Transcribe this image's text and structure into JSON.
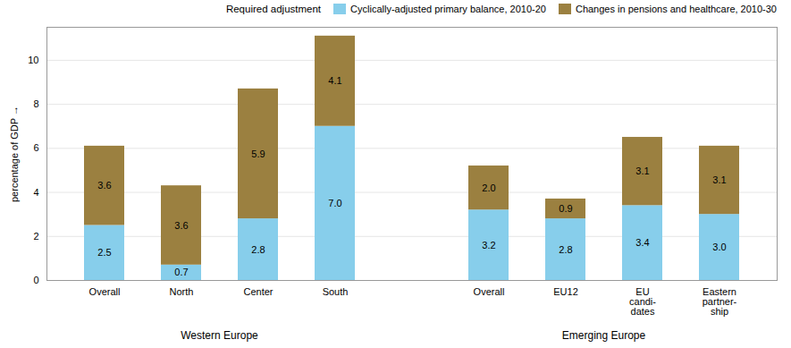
{
  "chart_data": {
    "type": "bar",
    "stacked": true,
    "data_labels": true,
    "categories": [
      "Overall",
      "North",
      "Center",
      "South",
      "Overall",
      "EU12",
      "EU\ncandi-\ndates",
      "Eastern\npartner-\nship"
    ],
    "category_groups": [
      "Western Europe",
      "Western Europe",
      "Western Europe",
      "Western Europe",
      "Emerging Europe",
      "Emerging Europe",
      "Emerging Europe",
      "Emerging Europe"
    ],
    "ylabel": "percentage of GDP",
    "ylim": [
      0,
      11.5
    ],
    "yticks": [
      0,
      2,
      4,
      6,
      8,
      10
    ],
    "grid": true,
    "legend": "upper right",
    "legend_title": "Required adjustment",
    "series": [
      {
        "name": "Cyclically-adjusted primary balance, 2010-20",
        "color": "#87CEEB",
        "values": [
          2.5,
          0.7,
          2.8,
          7.0,
          3.2,
          2.8,
          3.4,
          3.0
        ],
        "value_labels": [
          "2.5",
          "0.7",
          "2.8",
          "7.0",
          "3.2",
          "2.8",
          "3.4",
          "3.0"
        ]
      },
      {
        "name": "Changes in pensions and healthcare, 2010-30",
        "color": "#9B8040",
        "values": [
          3.6,
          3.6,
          5.9,
          4.1,
          2.0,
          0.9,
          3.1,
          3.1
        ],
        "value_labels": [
          "3.6",
          "3.6",
          "5.9",
          "4.1",
          "2.0",
          "0.9",
          "3.1",
          "3.1"
        ]
      }
    ]
  }
}
